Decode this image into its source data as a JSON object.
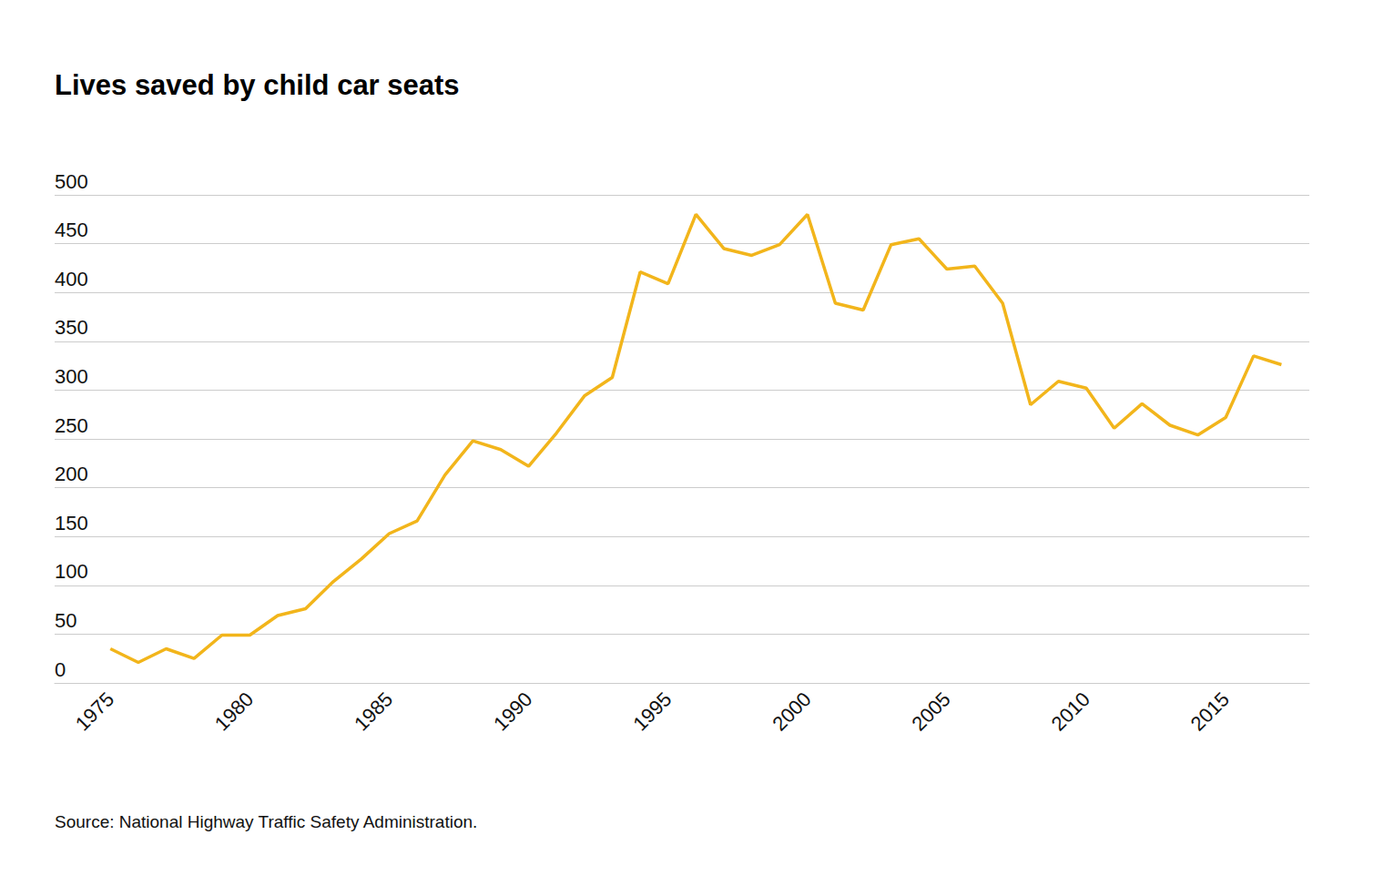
{
  "chart_data": {
    "type": "line",
    "title": "Lives saved by child car seats",
    "annotations": [
      "Source: National Highway Traffic Safety Administration."
    ],
    "x": [
      1975,
      1976,
      1977,
      1978,
      1979,
      1980,
      1981,
      1982,
      1983,
      1984,
      1985,
      1986,
      1987,
      1988,
      1989,
      1990,
      1991,
      1992,
      1993,
      1994,
      1995,
      1996,
      1997,
      1998,
      1999,
      2000,
      2001,
      2002,
      2003,
      2004,
      2005,
      2006,
      2007,
      2008,
      2009,
      2010,
      2011,
      2012,
      2013,
      2014,
      2015,
      2016,
      2017
    ],
    "values": [
      35,
      21,
      35,
      25,
      49,
      49,
      69,
      76,
      104,
      127,
      153,
      166,
      213,
      248,
      239,
      222,
      256,
      294,
      313,
      421,
      409,
      480,
      445,
      438,
      449,
      480,
      389,
      382,
      449,
      455,
      424,
      427,
      389,
      285,
      309,
      302,
      261,
      286,
      264,
      254,
      272,
      335,
      326
    ],
    "color": "#f2b51b",
    "xlim": [
      1973,
      2018
    ],
    "xticks": [
      1975,
      1980,
      1985,
      1990,
      1995,
      2000,
      2005,
      2010,
      2015
    ],
    "ylim": [
      0,
      500
    ],
    "yticks": [
      0,
      50,
      100,
      150,
      200,
      250,
      300,
      350,
      400,
      450,
      500
    ],
    "grid": true
  }
}
